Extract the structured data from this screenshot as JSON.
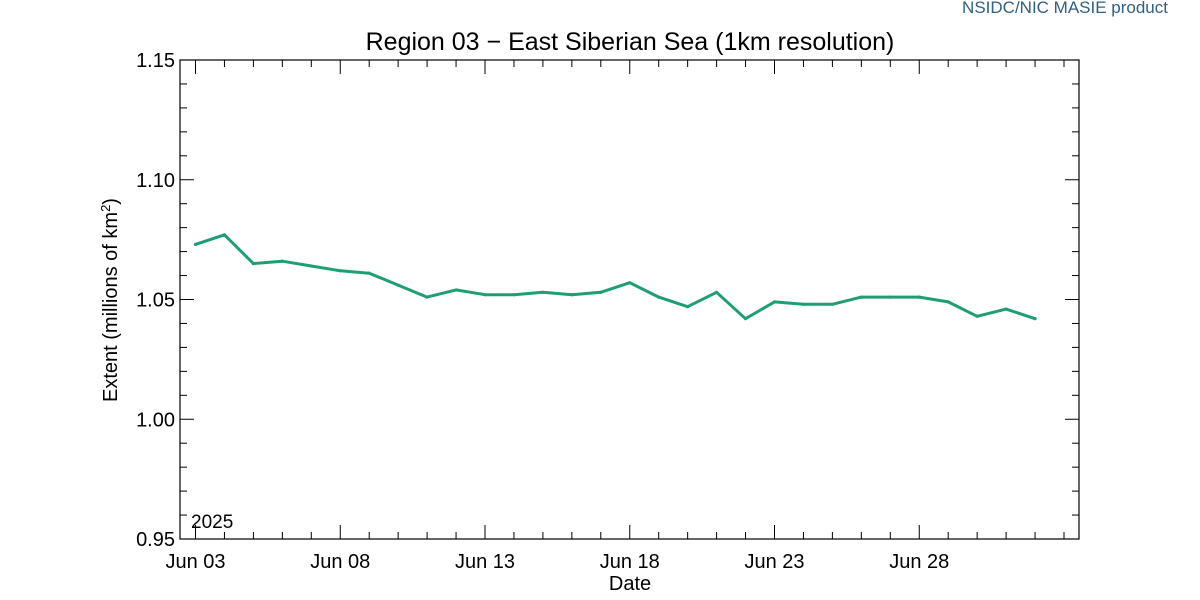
{
  "credit": {
    "text": "NSIDC/NIC MASIE product",
    "color": "#2f5f86"
  },
  "chart_data": {
    "type": "line",
    "title": "Region 03 − East Siberian Sea (1km resolution)",
    "xlabel": "Date",
    "ylabel_main": "Extent (millions of km",
    "ylabel_sup": "2",
    "ylabel_tail": ")",
    "year_label": "2025",
    "line_color": "#1f9e74",
    "ylim": [
      0.95,
      1.15
    ],
    "yticks": [
      0.95,
      1.0,
      1.05,
      1.1,
      1.15
    ],
    "ytick_labels": [
      "0.95",
      "1.00",
      "1.05",
      "1.10",
      "1.15"
    ],
    "x_range_days": [
      3,
      33
    ],
    "xtick_labels": [
      {
        "label": "Jun 03",
        "day": 3
      },
      {
        "label": "Jun 08",
        "day": 8
      },
      {
        "label": "Jun 13",
        "day": 13
      },
      {
        "label": "Jun 18",
        "day": 18
      },
      {
        "label": "Jun 23",
        "day": 23
      },
      {
        "label": "Jun 28",
        "day": 28
      }
    ],
    "series": [
      {
        "days": [
          3,
          4,
          5,
          6,
          7,
          8,
          9,
          10,
          11,
          12,
          13,
          14,
          15,
          16,
          17,
          18,
          19,
          20,
          21,
          22,
          23,
          24,
          25,
          26,
          27,
          28,
          29,
          30,
          31,
          32
        ],
        "values": [
          1.073,
          1.077,
          1.065,
          1.066,
          1.064,
          1.062,
          1.061,
          1.056,
          1.051,
          1.054,
          1.052,
          1.052,
          1.053,
          1.052,
          1.053,
          1.057,
          1.051,
          1.047,
          1.053,
          1.042,
          1.049,
          1.048,
          1.048,
          1.051,
          1.051,
          1.051,
          1.049,
          1.043,
          1.046,
          1.042
        ]
      }
    ],
    "grid": false
  }
}
